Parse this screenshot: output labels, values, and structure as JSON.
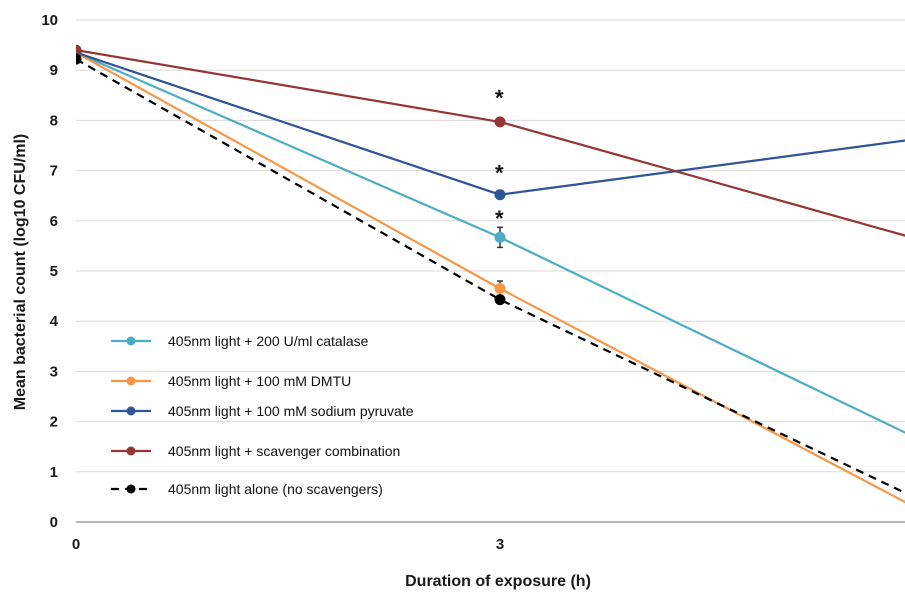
{
  "chart_data": {
    "type": "line",
    "title": "",
    "xlabel": "Duration of exposure (h)",
    "ylabel": "Mean bacterial count (log10 CFU/ml)",
    "x_ticks": [
      "0",
      "3"
    ],
    "x": [
      0,
      3,
      6
    ],
    "x_visible_max": 3.98,
    "ylim": [
      0,
      10
    ],
    "y_ticks": [
      "0",
      "1",
      "2",
      "3",
      "4",
      "5",
      "6",
      "7",
      "8",
      "9",
      "10"
    ],
    "grid": "horizontal",
    "legend_position": "lower-left",
    "series": [
      {
        "name": "405nm light + 200 U/ml catalase",
        "color": "#4bacc6",
        "dash": false,
        "values": [
          9.35,
          5.67,
          1.6
        ],
        "errors": [
          0,
          0.2,
          0
        ]
      },
      {
        "name": "405nm light + 100 mM DMTU",
        "color": "#f79646",
        "dash": false,
        "values": [
          9.35,
          4.65,
          0.2
        ],
        "errors": [
          0,
          0.15,
          0
        ]
      },
      {
        "name": "405nm light + 100 mM sodium pyruvate",
        "color": "#2f5597",
        "dash": false,
        "values": [
          9.35,
          6.52,
          7.65
        ],
        "errors": [
          0,
          0.08,
          0
        ]
      },
      {
        "name": "405nm light + scavenger combination",
        "color": "#943634",
        "dash": false,
        "values": [
          9.4,
          7.97,
          5.6
        ],
        "errors": [
          0,
          0,
          0
        ]
      },
      {
        "name": "405nm light alone (no scavengers)",
        "color": "#000000",
        "dash": true,
        "values": [
          9.22,
          4.43,
          0.4
        ],
        "errors": [
          0,
          0,
          0
        ]
      }
    ],
    "annotations": [
      {
        "text": "*",
        "x": 3,
        "y": 8.5
      },
      {
        "text": "*",
        "x": 3,
        "y": 7.0
      },
      {
        "text": "*",
        "x": 3,
        "y": 6.1
      }
    ]
  }
}
